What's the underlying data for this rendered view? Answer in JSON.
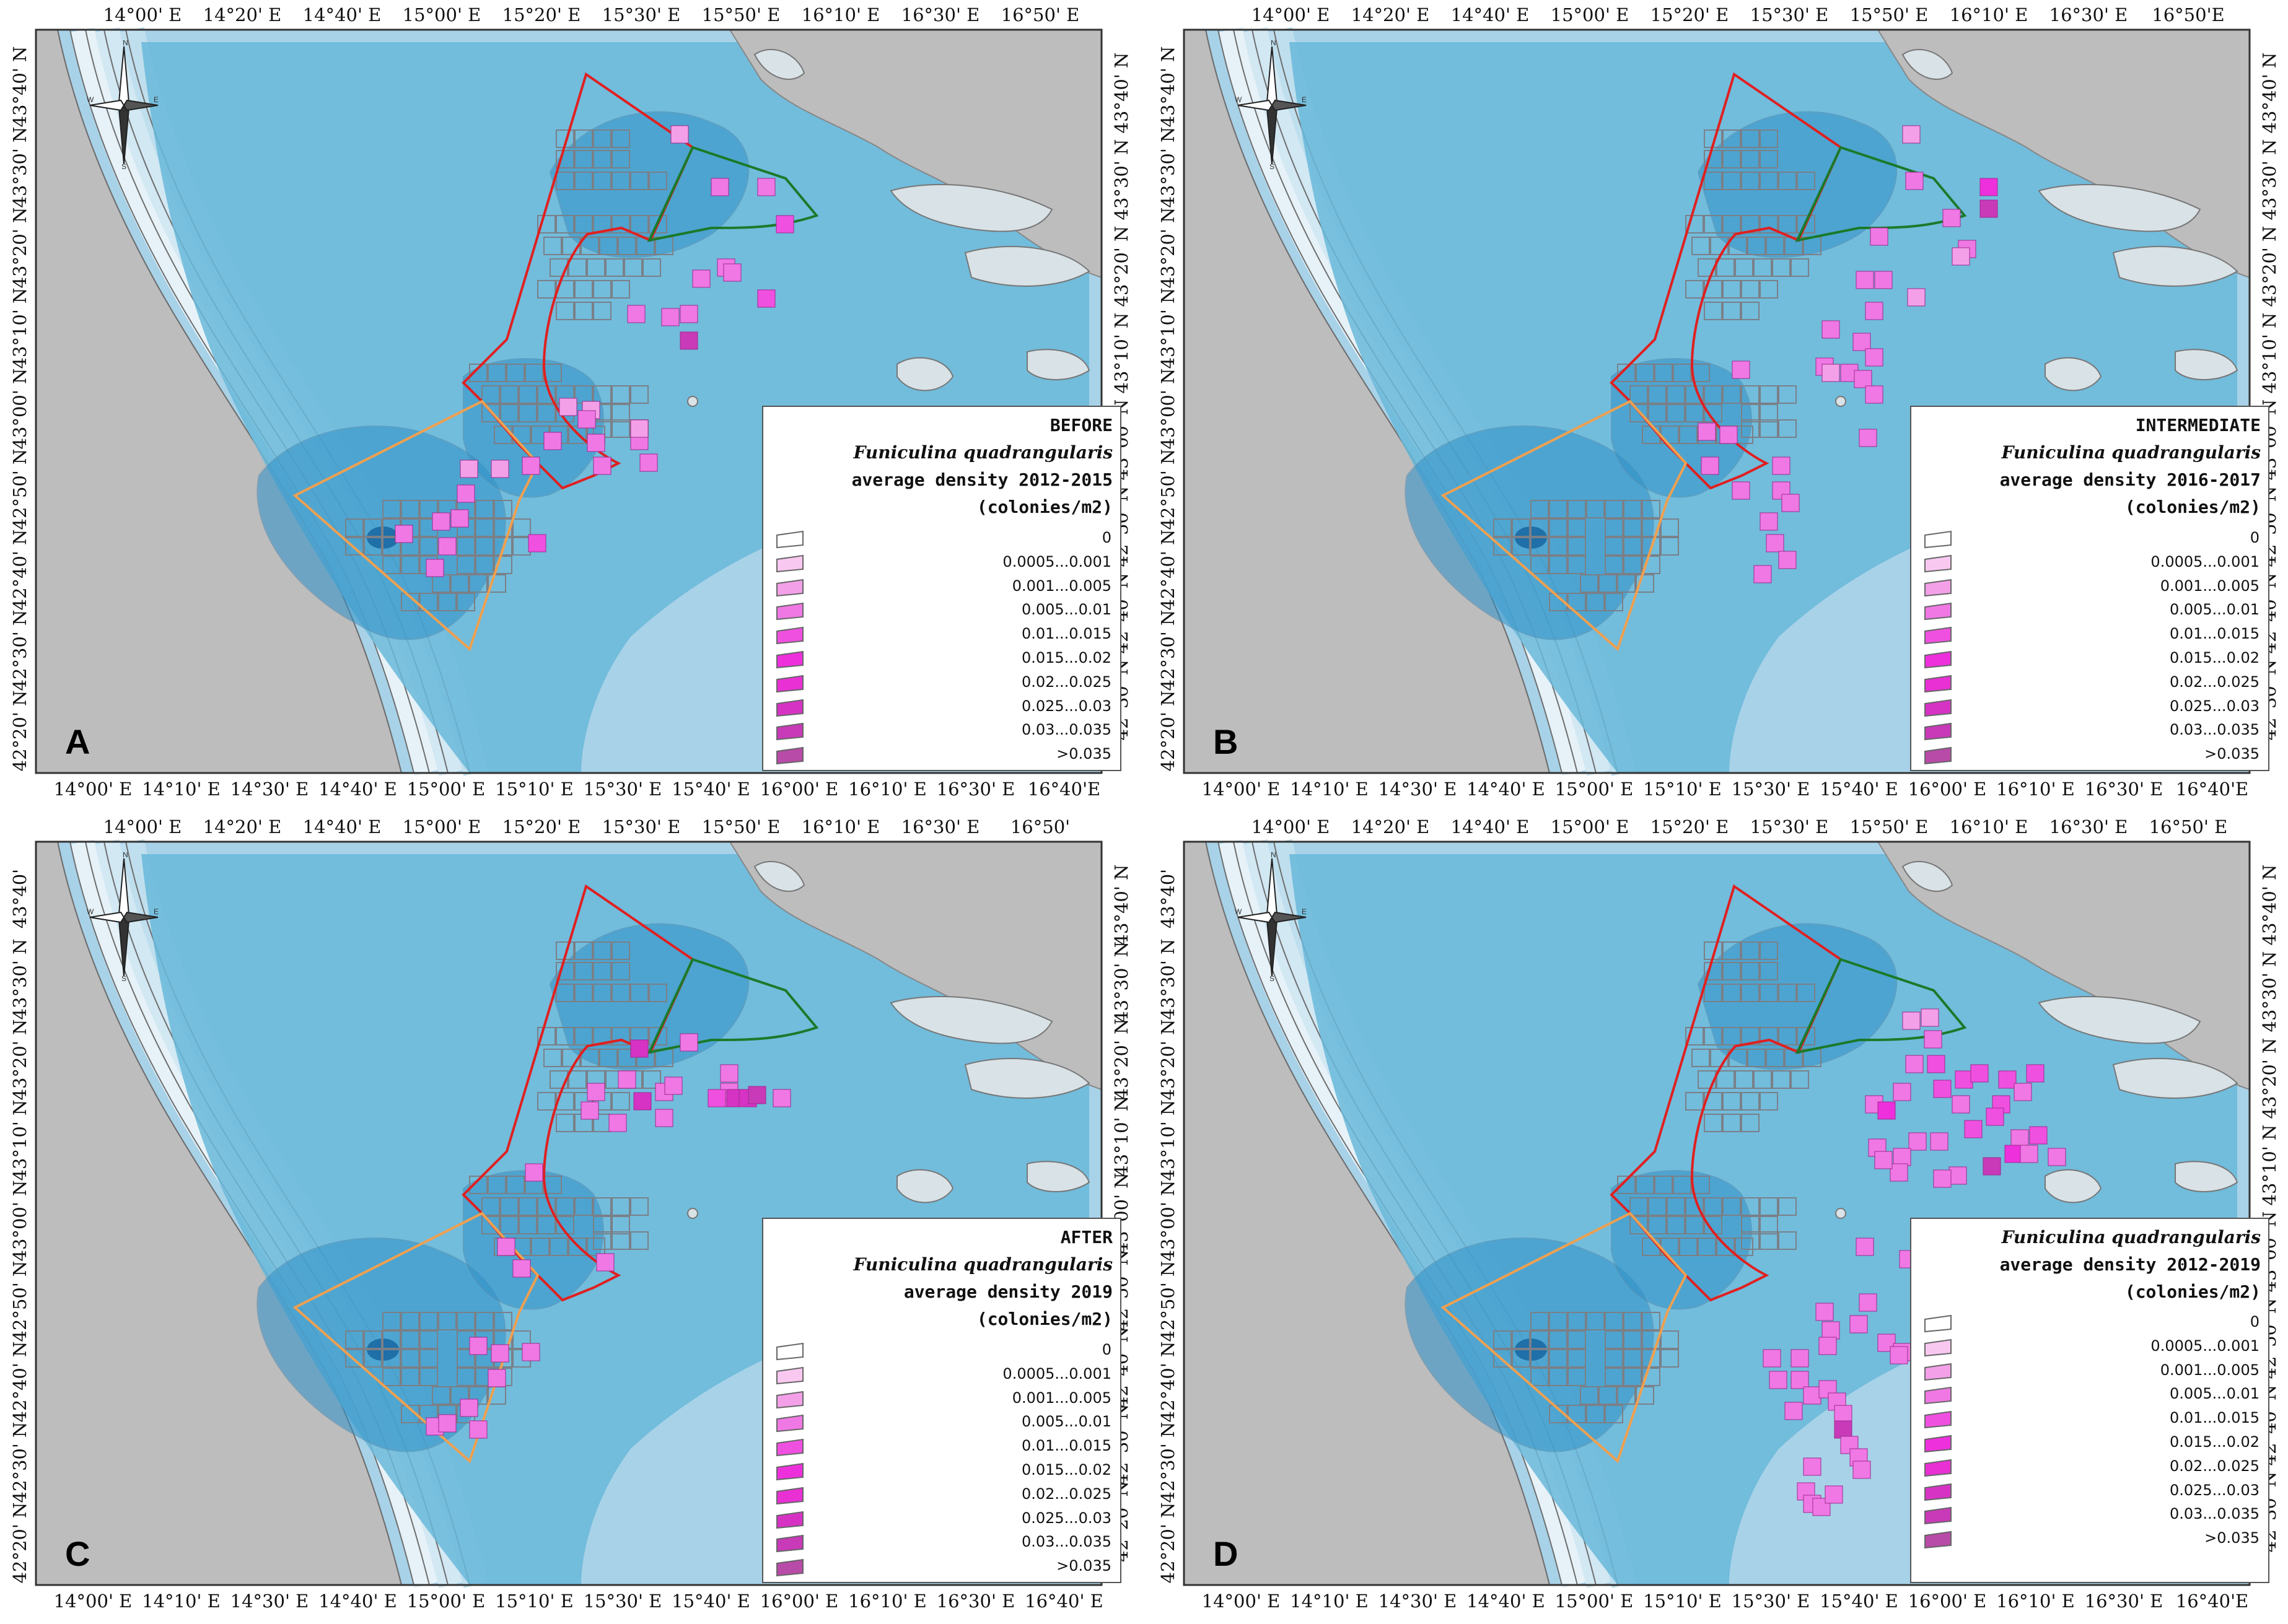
{
  "panels": [
    {
      "id": "A",
      "letter": "A",
      "legend_title": [
        "BEFORE",
        "Funiculina quadrangularis",
        "average density 2012-2015",
        "(colonies/m2)"
      ],
      "top_ticks": [
        "14°00' E",
        "14°20' E",
        "14°40' E",
        "15°00' E",
        "15°20' E",
        "15°30' E",
        "15°50' E",
        "16°10' E",
        "16°30' E",
        "16°50' E"
      ],
      "bottom_ticks": [
        "14°00' E",
        "14°10' E",
        "14°30' E",
        "14°40' E",
        "15°00' E",
        "15°10' E",
        "15°30' E",
        "15°40' E",
        "16°00' E",
        "16°10' E",
        "16°30' E",
        "16°40'E"
      ],
      "left_ticks": [
        "43°40' N",
        "43°30' N",
        "43°20' N",
        "43°10' N",
        "43°00' N",
        "42°50' N",
        "42°40' N",
        "42°30' N",
        "42°20' N"
      ],
      "right_ticks": [
        "43°40' N",
        "43°30' N",
        "43°20' N",
        "43°10' N",
        "43°00' N",
        "42°50' N",
        "42°40' N",
        "42°30' N"
      ]
    },
    {
      "id": "B",
      "letter": "B",
      "legend_title": [
        "INTERMEDIATE",
        "Funiculina quadrangularis",
        "average density 2016-2017",
        "(colonies/m2)"
      ],
      "top_ticks": [
        "14°00' E",
        "14°20' E",
        "14°40' E",
        "15°00' E",
        "15°20' E",
        "15°30' E",
        "15°50' E",
        "16°10' E",
        "16°30' E",
        "16°50'E"
      ],
      "bottom_ticks": [
        "14°00' E",
        "14°10' E",
        "14°30' E",
        "14°40' E",
        "15°00' E",
        "15°10' E",
        "15°30' E",
        "15°40' E",
        "16°00' E",
        "16°10' E",
        "16°30' E",
        "16°40'E"
      ],
      "left_ticks": [
        "43°40' N",
        "43°30' N",
        "43°20' N",
        "43°10' N",
        "43°00' N",
        "42°50' N",
        "42°40' N",
        "42°30' N",
        "42°20' N"
      ],
      "right_ticks": [
        "43°40' N",
        "43°30' N",
        "43°20' N",
        "43°10' N",
        "43°00' N",
        "42°50' N",
        "42°40' N",
        "42°30' N"
      ]
    },
    {
      "id": "C",
      "letter": "C",
      "legend_title": [
        "AFTER",
        "Funiculina quadrangularis",
        "average density 2019",
        "(colonies/m2)"
      ],
      "top_ticks": [
        "14°00' E",
        "14°20' E",
        "14°40' E",
        "15°00' E",
        "15°20' E",
        "15°30' E",
        "15°50' E",
        "16°10' E",
        "16°30' E",
        "16°50'"
      ],
      "bottom_ticks": [
        "14°00' E",
        "14°10' E",
        "14°30' E",
        "14°40' E",
        "15°00' E",
        "15°10' E",
        "15°30' E",
        "15°40' E",
        "16°00' E",
        "16°10' E",
        "16°30' E",
        "16°40' E"
      ],
      "left_ticks": [
        "43°40'",
        "43°30' N",
        "43°20' N",
        "43°10' N",
        "43°00' N",
        "42°50' N",
        "42°40' N",
        "42°30' N",
        "42°20' N"
      ],
      "right_ticks": [
        "43°40' N",
        "43°30' N",
        "43°20' N",
        "43°10' N",
        "43°00' N",
        "42°50' N",
        "42°40' N",
        "42°30' N",
        "42°20' N"
      ]
    },
    {
      "id": "D",
      "letter": "D",
      "legend_title": [
        "Funiculina quadrangularis",
        "average density 2012-2019",
        "(colonies/m2)"
      ],
      "top_ticks": [
        "14°00' E",
        "14°20' E",
        "14°40' E",
        "15°00' E",
        "15°20' E",
        "15°30' E",
        "15°50' E",
        "16°10' E",
        "16°30' E",
        "16°50' E"
      ],
      "bottom_ticks": [
        "14°00' E",
        "14°10' E",
        "14°30' E",
        "14°40' E",
        "15°00' E",
        "15°10' E",
        "15°30' E",
        "15°40' E",
        "16°00' E",
        "16°10' E",
        "16°30' E",
        "16°40'E"
      ],
      "left_ticks": [
        "43°40'",
        "43°30' N",
        "43°20' N",
        "43°10' N",
        "43°00' N",
        "42°50' N",
        "42°40' N",
        "42°30' N",
        "42°20' N"
      ],
      "right_ticks": [
        "43°40' N",
        "43°30' N",
        "43°20' N",
        "43°10' N",
        "43°00' N",
        "42°50' N",
        "42°40' N",
        "42°30' N"
      ]
    }
  ],
  "legend_classes": [
    "0",
    "0.0005...0.001",
    "0.001...0.005",
    "0.005...0.01",
    "0.01...0.015",
    "0.015...0.02",
    "0.02...0.025",
    "0.025...0.03",
    "0.03...0.035",
    ">0.035"
  ],
  "legend_colors": [
    "#ffffff",
    "#f9c8f0",
    "#f4a0e8",
    "#f078e4",
    "#f050e0",
    "#ee30dc",
    "#e830d4",
    "#d633c4",
    "#c83ab8",
    "#b84aa8"
  ],
  "compass_labels": [
    "N",
    "S",
    "W",
    "E"
  ],
  "colors": {
    "land": "#bdbdbd",
    "shelf": "#a8d2e8",
    "deep": "#69b8d9",
    "pit": "#2f91c8",
    "no_take_zone": "#e02020",
    "buffer_zone": "#f0a050",
    "green_zone": "#1a7a2a"
  }
}
